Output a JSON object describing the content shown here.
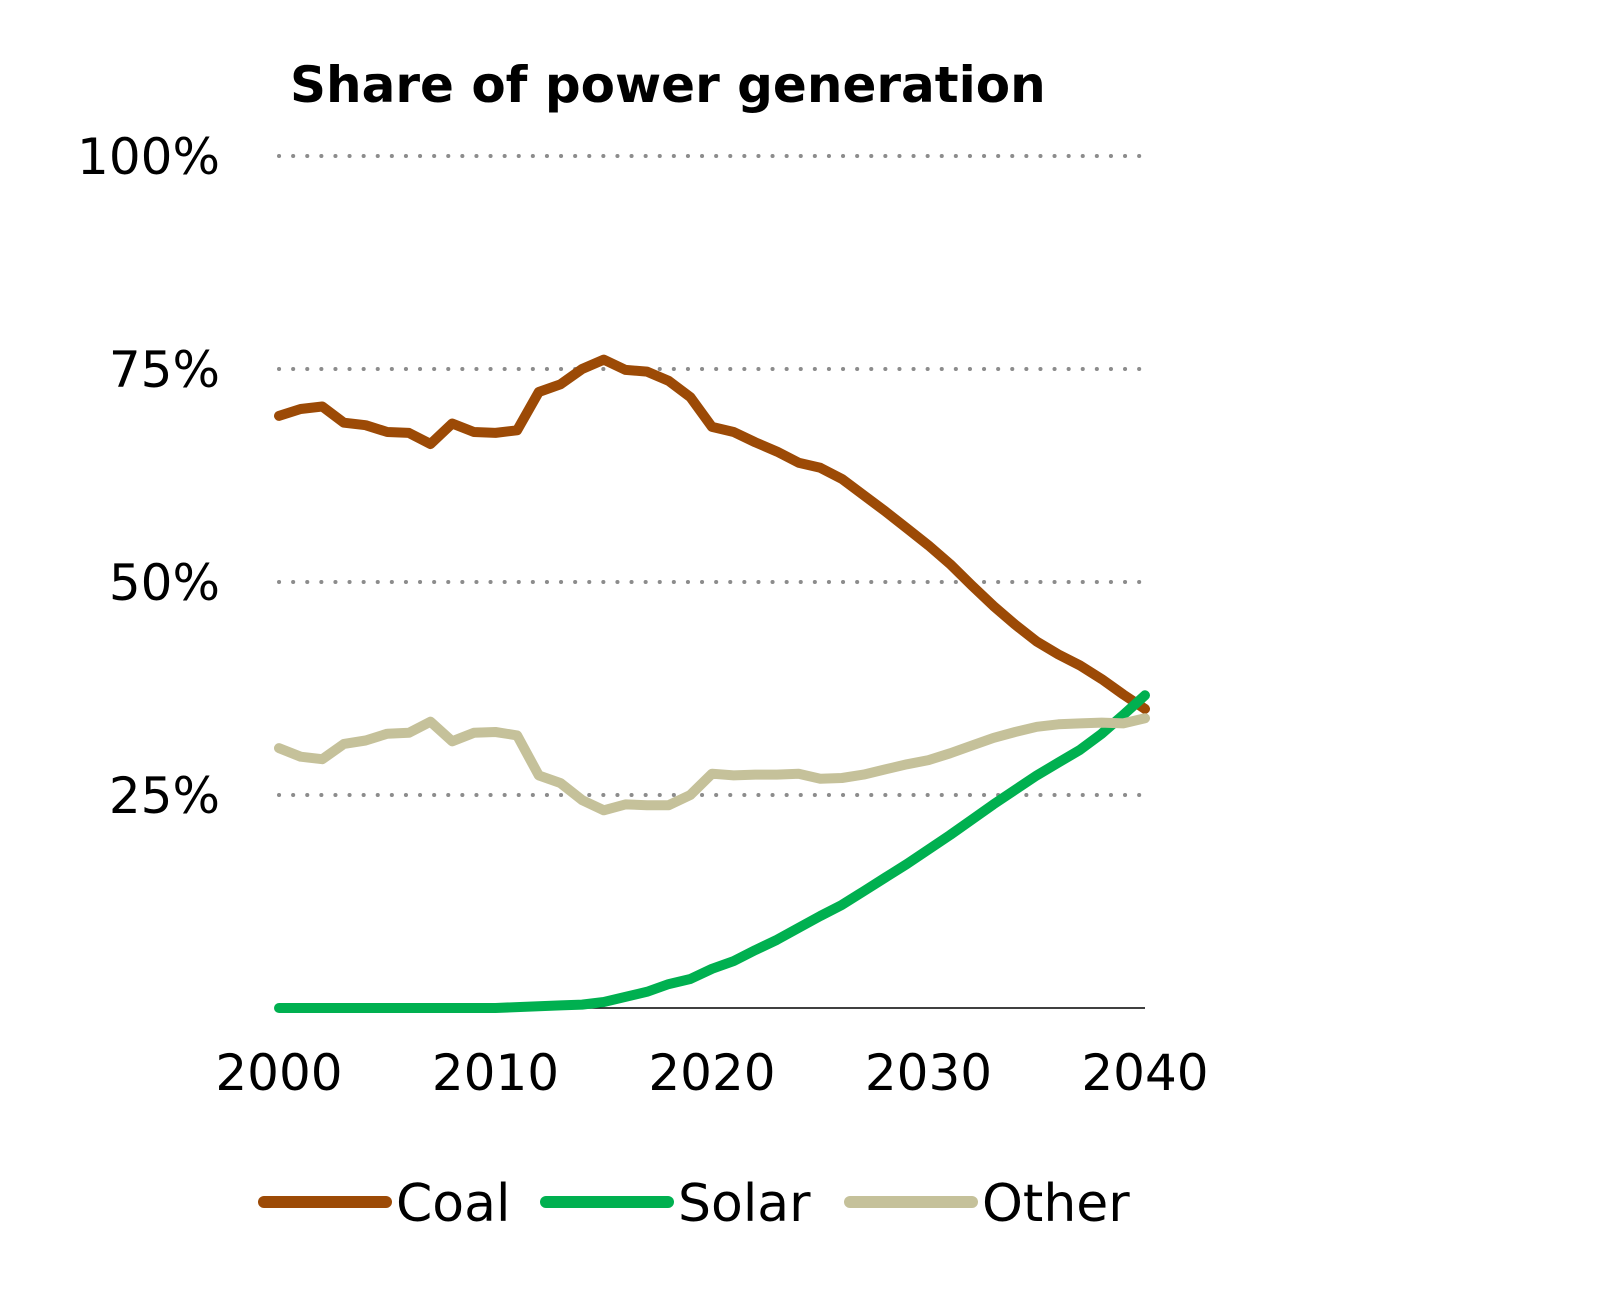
{
  "chart_data": {
    "type": "line",
    "title": "Share of power generation",
    "xlabel": "",
    "ylabel": "",
    "xlim": [
      2000,
      2040
    ],
    "ylim": [
      0,
      100
    ],
    "x_ticks": [
      "2000",
      "2010",
      "2020",
      "2030",
      "2040"
    ],
    "y_ticks": [
      {
        "value": 25,
        "label": "25%"
      },
      {
        "value": 50,
        "label": "50%"
      },
      {
        "value": 75,
        "label": "75%"
      },
      {
        "value": 100,
        "label": "100%"
      }
    ],
    "grid": "horizontal dotted",
    "legend_position": "bottom",
    "x": [
      2000,
      2001,
      2002,
      2003,
      2004,
      2005,
      2006,
      2007,
      2008,
      2009,
      2010,
      2011,
      2012,
      2013,
      2014,
      2015,
      2016,
      2017,
      2018,
      2019,
      2020,
      2021,
      2022,
      2023,
      2024,
      2025,
      2026,
      2027,
      2028,
      2029,
      2030,
      2031,
      2032,
      2033,
      2034,
      2035,
      2036,
      2037,
      2038,
      2039,
      2040
    ],
    "series": [
      {
        "name": "Coal",
        "color": "#9C4A06",
        "values": [
          69.5,
          70.3,
          70.6,
          68.7,
          68.4,
          67.6,
          67.5,
          66.2,
          68.6,
          67.6,
          67.5,
          67.8,
          72.3,
          73.2,
          75.0,
          76.1,
          74.9,
          74.7,
          73.6,
          71.7,
          68.2,
          67.6,
          66.4,
          65.3,
          64.0,
          63.4,
          62.1,
          60.2,
          58.3,
          56.3,
          54.3,
          52.1,
          49.6,
          47.2,
          45.0,
          43.0,
          41.5,
          40.2,
          38.6,
          36.8,
          35.1
        ]
      },
      {
        "name": "Solar",
        "color": "#00B050",
        "values": [
          0.0,
          0.0,
          0.0,
          0.0,
          0.0,
          0.0,
          0.0,
          0.0,
          0.0,
          0.0,
          0.0,
          0.1,
          0.2,
          0.3,
          0.4,
          0.7,
          1.3,
          1.9,
          2.8,
          3.4,
          4.6,
          5.5,
          6.8,
          8.0,
          9.4,
          10.8,
          12.1,
          13.7,
          15.3,
          16.9,
          18.6,
          20.3,
          22.1,
          23.9,
          25.6,
          27.3,
          28.8,
          30.3,
          32.2,
          34.4,
          36.7
        ]
      },
      {
        "name": "Other",
        "color": "#C5C19A",
        "values": [
          30.5,
          29.5,
          29.2,
          31.0,
          31.4,
          32.2,
          32.3,
          33.6,
          31.3,
          32.3,
          32.4,
          32.0,
          27.3,
          26.4,
          24.4,
          23.2,
          23.9,
          23.8,
          23.8,
          25.0,
          27.5,
          27.3,
          27.4,
          27.4,
          27.5,
          26.9,
          27.0,
          27.4,
          28.0,
          28.6,
          29.1,
          29.9,
          30.8,
          31.7,
          32.4,
          33.0,
          33.3,
          33.4,
          33.5,
          33.4,
          34.0
        ]
      }
    ]
  }
}
